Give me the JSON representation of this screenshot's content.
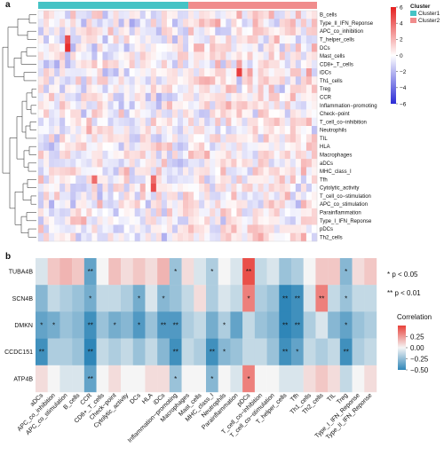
{
  "panels": {
    "a": "a",
    "b": "b"
  },
  "chart_data": [
    {
      "type": "heatmap",
      "panel": "a",
      "rows": [
        "B_cells",
        "Type_II_IFN_Reponse",
        "APC_co_inhibition",
        "T_helper_cells",
        "DCs",
        "Mast_cells",
        "CD8+_T_cells",
        "iDCs",
        "Th1_cells",
        "Treg",
        "CCR",
        "Inflammation−promoting",
        "Check−point",
        "T_cell_co−inhibition",
        "Neutrophils",
        "TIL",
        "HLA",
        "Macrophages",
        "aDCs",
        "MHC_class_I",
        "Tfh",
        "Cytolytic_activity",
        "T_cell_co−stimulation",
        "APC_co_stimulation",
        "Parainflammation",
        "Type_I_IFN_Reponse",
        "pDCs",
        "Th2_cells"
      ],
      "column_groups": [
        {
          "name": "Cluster1",
          "count": 28
        },
        {
          "name": "Cluster2",
          "count": 24
        }
      ],
      "cluster_legend": {
        "title": "Cluster",
        "items": [
          "Cluster1",
          "Cluster2"
        ],
        "colors": [
          "#46c3c5",
          "#f08c8c"
        ]
      },
      "color_scale": {
        "ticks": [
          "6",
          "4",
          "2",
          "0",
          "−2",
          "−4",
          "−6"
        ],
        "range": [
          -6,
          6
        ],
        "colors": [
          "#2b2bd6",
          "#ffffff",
          "#e51f1f"
        ]
      },
      "highlights": [
        {
          "row": 3,
          "col": 5,
          "value": 4.5
        },
        {
          "row": 4,
          "col": 5,
          "value": 5.5
        },
        {
          "row": 7,
          "col": 37,
          "value": 5.0
        },
        {
          "row": 20,
          "col": 10,
          "value": 3.5
        },
        {
          "row": 21,
          "col": 21,
          "value": 4.5
        },
        {
          "row": 20,
          "col": 21,
          "value": 3.5
        }
      ]
    },
    {
      "type": "heatmap",
      "panel": "b",
      "rows": [
        "TUBA4B",
        "SCN4B",
        "DMKN",
        "CCDC151",
        "ATP4B"
      ],
      "columns": [
        "aDCs",
        "APC_co_inhibition",
        "APC_co_stimulation",
        "B_cells",
        "CCR",
        "CD8+_T_cells",
        "Check−point",
        "Cytolytic_activity",
        "DCs",
        "HLA",
        "iDCs",
        "Inflammation−promoting",
        "Macrophages",
        "Mast_cells",
        "MHC_class_I",
        "Neutrophils",
        "Parainflammation",
        "pDCs",
        "T_cell_co−inhibition",
        "T_cell_co−stimulation",
        "T_helper_cells",
        "Tfh",
        "Th1_cells",
        "Th2_cells",
        "TIL",
        "Treg",
        "Type_I_IFN_Reponse",
        "Type_II_IFN_Reponse"
      ],
      "values": [
        [
          -0.05,
          0.1,
          0.15,
          0.1,
          -0.35,
          0.0,
          0.12,
          0.05,
          0.1,
          0.05,
          0.15,
          -0.2,
          0.05,
          -0.05,
          -0.15,
          0.0,
          -0.05,
          0.45,
          -0.1,
          -0.05,
          -0.2,
          -0.15,
          0.0,
          0.1,
          0.1,
          -0.25,
          0.05,
          0.1
        ],
        [
          -0.25,
          -0.1,
          -0.15,
          -0.2,
          -0.3,
          -0.1,
          -0.1,
          -0.15,
          -0.3,
          -0.05,
          -0.25,
          -0.2,
          -0.1,
          0.05,
          -0.15,
          -0.05,
          -0.1,
          0.3,
          -0.15,
          -0.2,
          -0.5,
          -0.45,
          -0.05,
          0.3,
          -0.1,
          -0.2,
          -0.1,
          -0.1
        ],
        [
          -0.35,
          -0.3,
          -0.2,
          -0.25,
          -0.45,
          -0.2,
          -0.3,
          -0.25,
          -0.4,
          -0.2,
          -0.4,
          -0.4,
          -0.15,
          -0.1,
          -0.3,
          -0.15,
          -0.35,
          -0.1,
          -0.2,
          -0.25,
          -0.5,
          -0.45,
          -0.15,
          -0.05,
          -0.25,
          -0.35,
          -0.2,
          -0.15
        ],
        [
          -0.45,
          -0.15,
          -0.15,
          -0.2,
          -0.5,
          -0.1,
          -0.15,
          -0.1,
          -0.2,
          -0.1,
          -0.25,
          -0.45,
          -0.1,
          -0.15,
          -0.45,
          -0.25,
          -0.2,
          -0.1,
          -0.1,
          -0.2,
          -0.45,
          -0.35,
          -0.1,
          -0.15,
          -0.1,
          -0.45,
          -0.15,
          -0.1
        ],
        [
          0.05,
          0.0,
          -0.05,
          -0.05,
          -0.35,
          0.0,
          0.05,
          0.0,
          0.0,
          0.05,
          0.05,
          -0.2,
          0.0,
          0.0,
          -0.25,
          0.0,
          -0.05,
          0.3,
          0.0,
          0.0,
          -0.05,
          -0.05,
          0.05,
          0.1,
          0.05,
          -0.1,
          0.0,
          0.05
        ]
      ],
      "stars": [
        [
          "",
          "",
          "",
          "",
          "**",
          "",
          "",
          "",
          "",
          "",
          "",
          "*",
          "",
          "",
          "*",
          "",
          "",
          "**",
          "",
          "",
          "",
          "",
          "",
          "",
          "",
          "*",
          "",
          ""
        ],
        [
          "",
          "",
          "",
          "",
          "*",
          "",
          "",
          "",
          "*",
          "",
          "*",
          "",
          "",
          "",
          "",
          "",
          "",
          "*",
          "",
          "",
          "**",
          "**",
          "",
          "**",
          "",
          "*",
          "",
          ""
        ],
        [
          "*",
          "*",
          "",
          "",
          "**",
          "",
          "*",
          "",
          "*",
          "",
          "**",
          "**",
          "",
          "",
          "",
          "*",
          "",
          "",
          "",
          "",
          "**",
          "**",
          "",
          "",
          "",
          "*",
          "",
          ""
        ],
        [
          "**",
          "",
          "",
          "",
          "**",
          "",
          "",
          "",
          "",
          "",
          "",
          "**",
          "",
          "",
          "**",
          "*",
          "",
          "",
          "",
          "",
          "**",
          "*",
          "",
          "",
          "",
          "**",
          "",
          ""
        ],
        [
          "",
          "",
          "",
          "",
          "**",
          "",
          "",
          "",
          "",
          "",
          "",
          "*",
          "",
          "",
          "*",
          "",
          "",
          "*",
          "",
          "",
          "",
          "",
          "",
          "",
          "",
          "",
          "",
          ""
        ]
      ],
      "significance_legend": [
        "* p < 0.05",
        "** p < 0.01"
      ],
      "color_legend": {
        "title": "Correlation",
        "ticks": [
          "0.25",
          "0.00",
          "−0.25",
          "−0.50"
        ],
        "range": [
          -0.5,
          0.5
        ]
      }
    }
  ]
}
